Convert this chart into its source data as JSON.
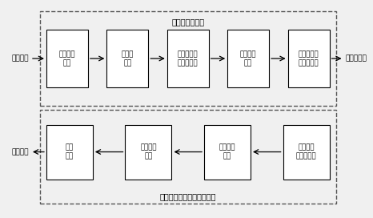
{
  "bg_color": "#f0f0f0",
  "box_color": "#ffffff",
  "box_edge": "#000000",
  "arrow_color": "#000000",
  "dash_box_color": "#555555",
  "title_top": "语谱图构建部分",
  "title_bottom": "基于语谱图的语音重构部分",
  "input_label": "音频输入",
  "output_label": "可视化输出",
  "output_label2": "音频输出",
  "top_boxes": [
    "语音信号\n分帧",
    "傅里叶\n分析",
    "子矩阵分解\n实部、虚部",
    "符号\n编码\n组合",
    "动矩阵构建\n三维彩色\n晕"
  ],
  "bottom_boxes": [
    "语音\n重构",
    "时频矩\n阵形成",
    "符号组合\n解码",
    "子阵提取\n实部与\n虚部"
  ],
  "fig_w": 4.66,
  "fig_h": 2.72,
  "dpi": 100
}
